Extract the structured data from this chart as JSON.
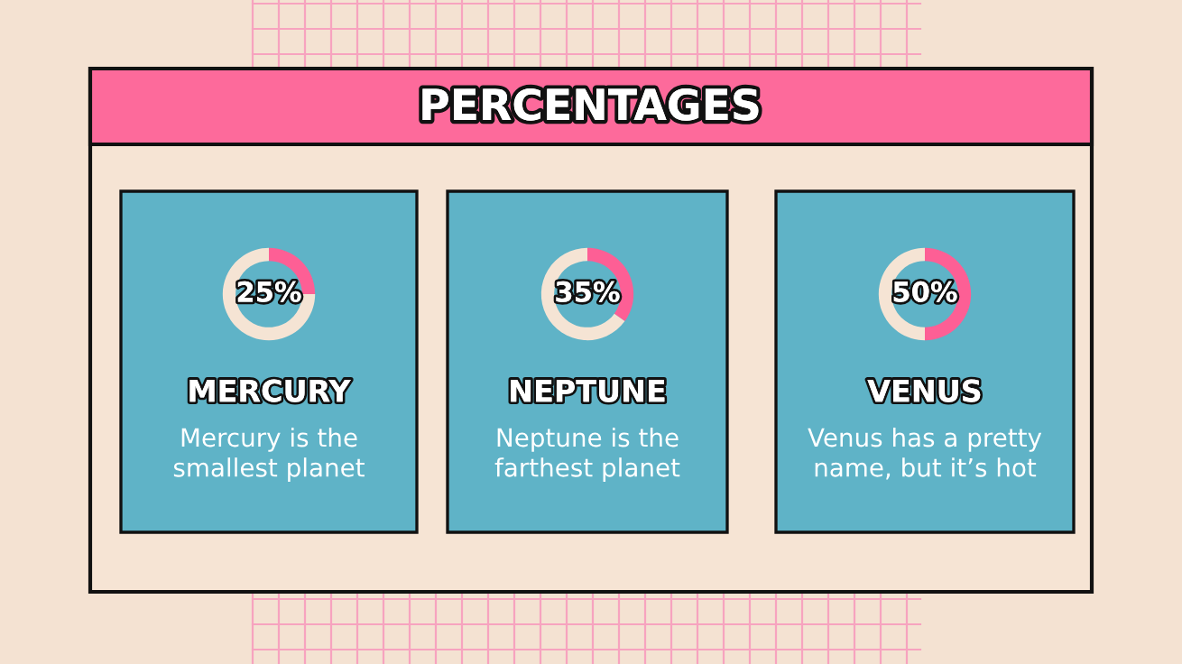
{
  "chart_data": [
    {
      "type": "other",
      "title": "PERCENTAGES"
    },
    {
      "type": "donut",
      "title": "MERCURY",
      "categories": [
        null,
        null
      ],
      "values": [
        25,
        75
      ],
      "colors": [
        "#fd5f95",
        "#f5e4d4"
      ],
      "value_labels": [
        "25%",
        null
      ],
      "annotations": [
        "Mercury is the\nsmallest planet"
      ]
    },
    {
      "type": "donut",
      "title": "NEPTUNE",
      "categories": [
        null,
        null
      ],
      "values": [
        35,
        65
      ],
      "colors": [
        "#fd5f95",
        "#f5e4d4"
      ],
      "value_labels": [
        "35%",
        null
      ],
      "annotations": [
        "Neptune is the\nfarthest planet"
      ]
    },
    {
      "type": "donut",
      "title": "VENUS",
      "categories": [
        null,
        null
      ],
      "values": [
        50,
        50
      ],
      "colors": [
        "#fd5f95",
        "#f5e4d4"
      ],
      "value_labels": [
        "50%",
        null
      ],
      "annotations": [
        "Venus has a pretty\nname, but it’s hot"
      ]
    }
  ]
}
